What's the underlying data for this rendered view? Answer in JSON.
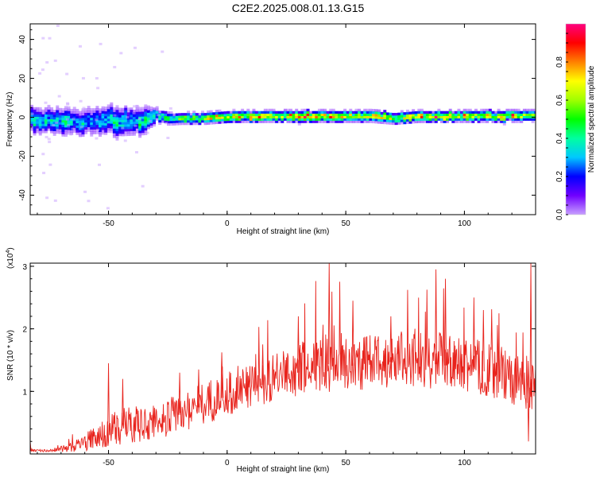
{
  "title": "C2E2.2025.008.01.13.G15",
  "chart_data": [
    {
      "type": "heatmap",
      "xlabel": "Height of straight line (km)",
      "ylabel": "Frequency (Hz)",
      "xlim": [
        -83,
        130
      ],
      "ylim": [
        -50,
        48
      ],
      "xticks": [
        -50,
        0,
        50,
        100
      ],
      "yticks": [
        -40,
        -20,
        0,
        20,
        40
      ],
      "colorbar": {
        "label": "Normalized spectral amplitude",
        "range": [
          0.0,
          1.0
        ],
        "ticks": [
          0.0,
          0.2,
          0.4,
          0.6,
          0.8
        ],
        "tick_labels": [
          "0.0",
          "0.2",
          "0.4",
          "0.6",
          "0.8"
        ],
        "colors": [
          "#c8a0ff",
          "#7000ff",
          "#0000ff",
          "#00c8ff",
          "#00ffa0",
          "#00ff00",
          "#a0ff00",
          "#ffff00",
          "#ff8000",
          "#ff0000",
          "#ff0080"
        ]
      },
      "band": {
        "center_freq": [
          [
            -83,
            -2
          ],
          [
            -75,
            -2
          ],
          [
            -65,
            -3
          ],
          [
            -55,
            -2
          ],
          [
            -45,
            -2
          ],
          [
            -35,
            -3
          ],
          [
            -30,
            0
          ],
          [
            -25,
            -1
          ],
          [
            -20,
            -1
          ],
          [
            -10,
            -1
          ],
          [
            0,
            0
          ],
          [
            20,
            0
          ],
          [
            40,
            0
          ],
          [
            60,
            0
          ],
          [
            70,
            -1
          ],
          [
            80,
            0
          ],
          [
            90,
            0
          ],
          [
            100,
            0
          ],
          [
            110,
            0
          ],
          [
            120,
            0
          ],
          [
            130,
            0
          ]
        ],
        "halfwidth": [
          [
            -83,
            6
          ],
          [
            -60,
            6
          ],
          [
            -45,
            7
          ],
          [
            -35,
            6
          ],
          [
            -30,
            3
          ],
          [
            -20,
            2.5
          ],
          [
            0,
            2.5
          ],
          [
            50,
            2.5
          ],
          [
            100,
            2.5
          ],
          [
            130,
            2.5
          ]
        ],
        "peak_amplitude": [
          [
            -83,
            0.45
          ],
          [
            -60,
            0.4
          ],
          [
            -45,
            0.45
          ],
          [
            -35,
            0.45
          ],
          [
            -25,
            0.6
          ],
          [
            -10,
            0.75
          ],
          [
            0,
            0.85
          ],
          [
            20,
            0.85
          ],
          [
            60,
            0.85
          ],
          [
            100,
            0.85
          ],
          [
            130,
            0.85
          ]
        ]
      }
    },
    {
      "type": "line",
      "xlabel": "Height of straight line (km)",
      "ylabel": "SNR (10 * v/v)",
      "y_multiplier": "(x10^4)",
      "xlim": [
        -83,
        130
      ],
      "ylim": [
        0,
        3.05
      ],
      "xticks": [
        -50,
        0,
        50,
        100
      ],
      "yticks": [
        1,
        2,
        3
      ],
      "color": "#e8231c",
      "envelope": {
        "x": [
          -83,
          -75,
          -65,
          -55,
          -45,
          -35,
          -25,
          -15,
          -5,
          5,
          15,
          25,
          35,
          45,
          55,
          65,
          75,
          85,
          95,
          105,
          115,
          125,
          130
        ],
        "baseline": [
          0.05,
          0.05,
          0.1,
          0.25,
          0.4,
          0.45,
          0.55,
          0.7,
          0.85,
          1.0,
          1.1,
          1.25,
          1.35,
          1.45,
          1.4,
          1.45,
          1.5,
          1.45,
          1.4,
          1.35,
          1.25,
          1.1,
          1.0
        ],
        "amplitude": [
          0.02,
          0.02,
          0.08,
          0.2,
          0.3,
          0.3,
          0.3,
          0.35,
          0.35,
          0.35,
          0.35,
          0.4,
          0.45,
          0.5,
          0.45,
          0.45,
          0.45,
          0.45,
          0.45,
          0.45,
          0.45,
          0.4,
          0.4
        ]
      },
      "notable_peaks": [
        [
          -83,
          0.2
        ],
        [
          -50,
          1.45
        ],
        [
          -44,
          1.2
        ],
        [
          -20,
          1.3
        ],
        [
          -12,
          1.35
        ],
        [
          -2,
          1.4
        ],
        [
          -12,
          1.2
        ],
        [
          15,
          1.75
        ],
        [
          30,
          2.2
        ],
        [
          43,
          3.05
        ],
        [
          53,
          2.45
        ],
        [
          69,
          2.2
        ],
        [
          88,
          2.95
        ],
        [
          92,
          2.8
        ],
        [
          104,
          2.5
        ],
        [
          108,
          2.3
        ],
        [
          128,
          3.05
        ],
        [
          127,
          0.2
        ]
      ]
    }
  ]
}
